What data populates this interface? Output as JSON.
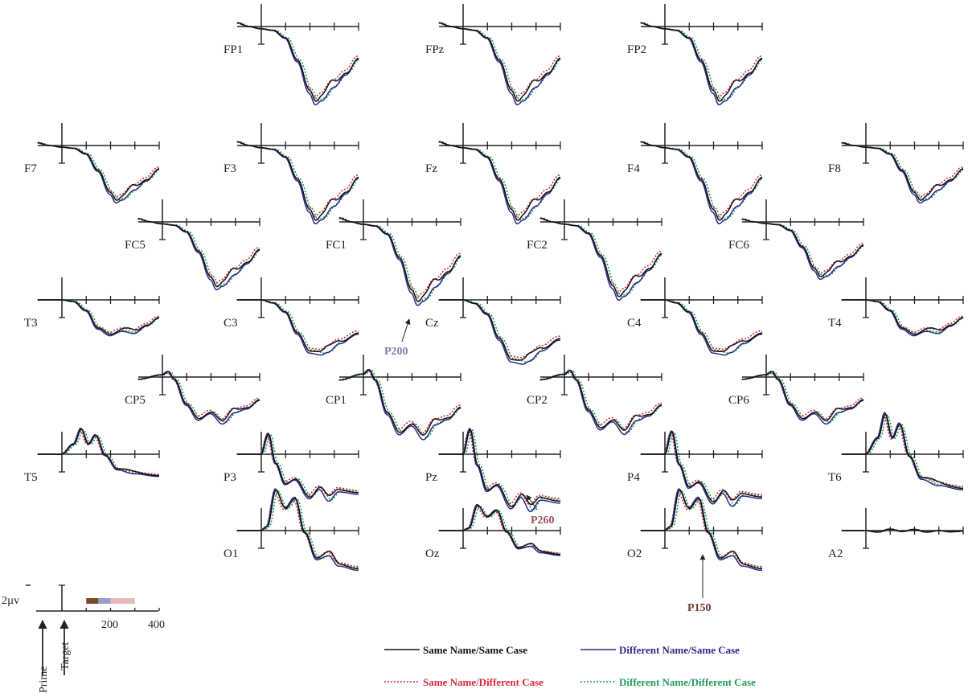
{
  "chart_data": {
    "type": "line",
    "colors": {
      "same_name_same_case": "#111111",
      "different_name_same_case": "#2a2a8c",
      "same_name_different_case": "#d8283a",
      "different_name_different_case": "#1e9b5a",
      "p200": "#7a7fa8",
      "p260": "#a0505a",
      "p150": "#6b3a2a",
      "scale_bar": [
        "#7a4a2e",
        "#9a9ccc",
        "#e8b9b9"
      ]
    },
    "series": [
      {
        "name": "Same Name/Same Case",
        "style": "solid"
      },
      {
        "name": "Different Name/Same Case",
        "style": "solid"
      },
      {
        "name": "Same Name/Different Case",
        "style": "dotted"
      },
      {
        "name": "Different Name/Different Case",
        "style": "dotted"
      }
    ],
    "xlim": [
      -100,
      400
    ],
    "ylim": [
      -9,
      3
    ],
    "scale": {
      "amplitude_label": "2µv",
      "ticks": [
        "200",
        "400"
      ],
      "prime_label": "Prime",
      "target_label": "Target",
      "windows": [
        [
          100,
          150
        ],
        [
          150,
          200
        ],
        [
          200,
          300
        ]
      ]
    },
    "annotations": [
      {
        "label": "P200",
        "electrode": "FC1",
        "latency": 200
      },
      {
        "label": "P260",
        "electrode": "Pz",
        "latency": 260
      },
      {
        "label": "P150",
        "electrode": "O2",
        "latency": 150
      }
    ],
    "electrodes": [
      {
        "label": "FP1",
        "shape": "frontal",
        "amp": 7.5
      },
      {
        "label": "FPz",
        "shape": "frontal",
        "amp": 7.5
      },
      {
        "label": "FP2",
        "shape": "frontal",
        "amp": 7.5
      },
      {
        "label": "F7",
        "shape": "frontal",
        "amp": 5.5
      },
      {
        "label": "F3",
        "shape": "frontal",
        "amp": 7.5
      },
      {
        "label": "Fz",
        "shape": "frontal",
        "amp": 7.5
      },
      {
        "label": "F4",
        "shape": "frontal",
        "amp": 7.5
      },
      {
        "label": "F8",
        "shape": "frontal",
        "amp": 5.5
      },
      {
        "label": "FC5",
        "shape": "frontal",
        "amp": 6.5
      },
      {
        "label": "FC1",
        "shape": "frontal",
        "amp": 8
      },
      {
        "label": "FC2",
        "shape": "frontal",
        "amp": 7.5
      },
      {
        "label": "FC6",
        "shape": "frontal",
        "amp": 5.5
      },
      {
        "label": "T3",
        "shape": "temporal",
        "amp": 3.5
      },
      {
        "label": "C3",
        "shape": "central",
        "amp": 6
      },
      {
        "label": "Cz",
        "shape": "central",
        "amp": 7
      },
      {
        "label": "C4",
        "shape": "central",
        "amp": 6
      },
      {
        "label": "T4",
        "shape": "temporal",
        "amp": 3.5
      },
      {
        "label": "CP5",
        "shape": "centroparietal",
        "amp": 4.5
      },
      {
        "label": "CP1",
        "shape": "centroparietal",
        "amp": 6
      },
      {
        "label": "CP2",
        "shape": "centroparietal",
        "amp": 5.5
      },
      {
        "label": "CP6",
        "shape": "centroparietal",
        "amp": 4.5
      },
      {
        "label": "T5",
        "shape": "tempoparietal",
        "amp": 2.5
      },
      {
        "label": "P3",
        "shape": "parietal",
        "amp": 4.5
      },
      {
        "label": "Pz",
        "shape": "parietal",
        "amp": 5.5
      },
      {
        "label": "P4",
        "shape": "parietal",
        "amp": 5
      },
      {
        "label": "T6",
        "shape": "tempoparietal",
        "amp": 4
      },
      {
        "label": "O1",
        "shape": "occipital",
        "amp": 4
      },
      {
        "label": "Oz",
        "shape": "occipital",
        "amp": 2.5
      },
      {
        "label": "O2",
        "shape": "occipital",
        "amp": 4
      },
      {
        "label": "A2",
        "shape": "flat",
        "amp": 0.3
      }
    ]
  }
}
